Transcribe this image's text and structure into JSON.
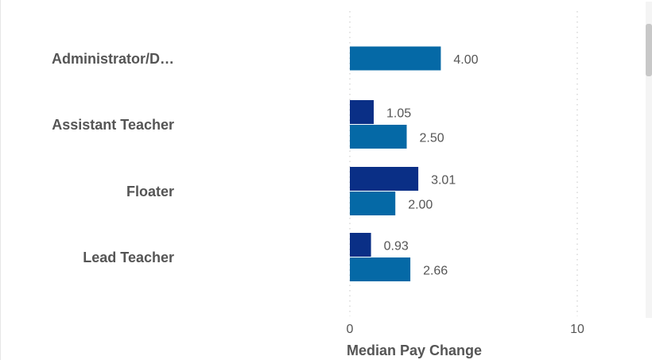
{
  "chart_data": {
    "type": "bar",
    "orientation": "horizontal",
    "categories": [
      "Administrator/D…",
      "Assistant Teacher",
      "Floater",
      "Lead Teacher"
    ],
    "series": [
      {
        "color": "#0a2f86",
        "values": [
          null,
          1.05,
          3.01,
          0.93
        ],
        "labels": [
          "",
          "1.05",
          "3.01",
          "0.93"
        ]
      },
      {
        "color": "#0569a6",
        "values": [
          4.0,
          2.5,
          2.0,
          2.66
        ],
        "labels": [
          "4.00",
          "2.50",
          "2.00",
          "2.66"
        ]
      }
    ],
    "xlabel": "Median Pay Change",
    "xlim": [
      0,
      10
    ],
    "xticks": [
      0,
      10
    ],
    "xtick_labels": [
      "0",
      "10"
    ],
    "grid": "vertical dotted"
  }
}
